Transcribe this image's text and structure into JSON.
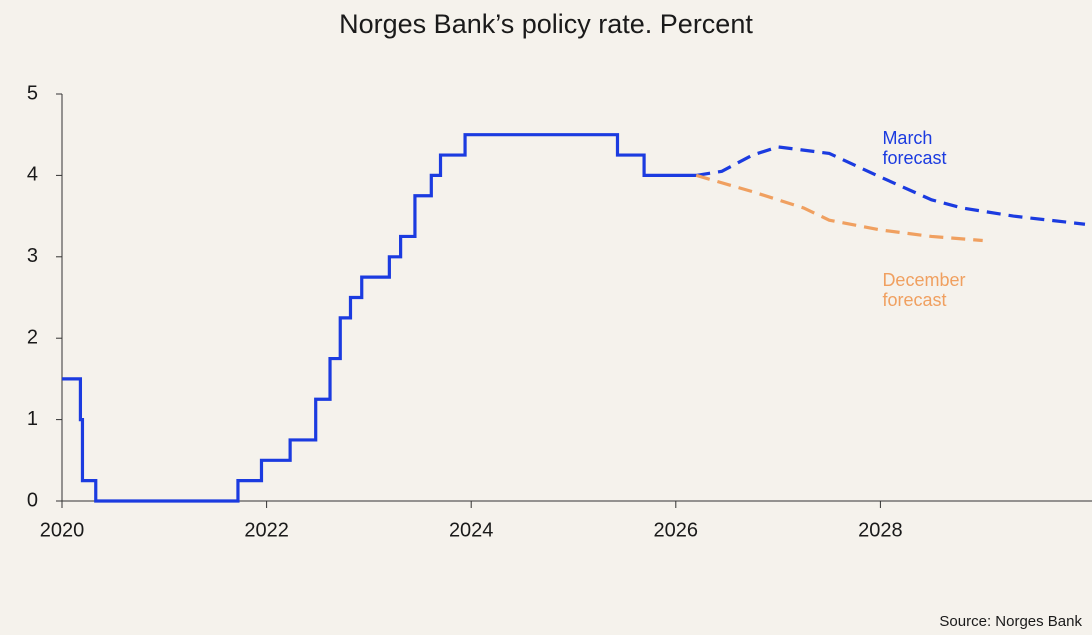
{
  "chart_data": {
    "type": "line",
    "title": "Norges Bank’s policy rate. Percent",
    "source": "Source: Norges Bank",
    "xlim": [
      2020,
      2030
    ],
    "xticks": [
      2020,
      2022,
      2024,
      2026,
      2028
    ],
    "ylim": [
      0,
      5
    ],
    "yticks": [
      0,
      1,
      2,
      3,
      4,
      5
    ],
    "series": [
      {
        "color": "#1b3be0",
        "step": "post",
        "dashed": false,
        "x": [
          2020.0,
          2020.18,
          2020.2,
          2020.33,
          2021.72,
          2021.95,
          2022.23,
          2022.48,
          2022.62,
          2022.72,
          2022.82,
          2022.93,
          2023.2,
          2023.31,
          2023.45,
          2023.61,
          2023.7,
          2023.94,
          2025.43,
          2025.69,
          2026.2
        ],
        "values": [
          1.5,
          1.0,
          0.25,
          0,
          0.25,
          0.5,
          0.75,
          1.25,
          1.75,
          2.25,
          2.5,
          2.75,
          3.0,
          3.25,
          3.75,
          4.0,
          4.25,
          4.5,
          4.25,
          4.0,
          4.0
        ]
      },
      {
        "color": "#1b3be0",
        "step": "none",
        "dashed": true,
        "x": [
          2026.2,
          2026.45,
          2026.75,
          2027.0,
          2027.5,
          2028.0,
          2028.5,
          2028.8,
          2029.3,
          2030.0
        ],
        "values": [
          4.0,
          4.05,
          4.25,
          4.35,
          4.27,
          3.98,
          3.7,
          3.6,
          3.5,
          3.4
        ]
      },
      {
        "color": "#f0a060",
        "step": "none",
        "dashed": true,
        "x": [
          2026.2,
          2026.75,
          2027.25,
          2027.5,
          2028.0,
          2028.5,
          2029.0
        ],
        "values": [
          4.0,
          3.8,
          3.6,
          3.45,
          3.33,
          3.25,
          3.2
        ]
      }
    ],
    "annotations": [
      {
        "lines": [
          "March",
          "forecast"
        ],
        "color": "#1b3be0",
        "x": 2028.02,
        "y": 4.45
      },
      {
        "lines": [
          "December",
          "forecast"
        ],
        "color": "#f0a060",
        "x": 2028.02,
        "y": 2.7
      }
    ]
  }
}
